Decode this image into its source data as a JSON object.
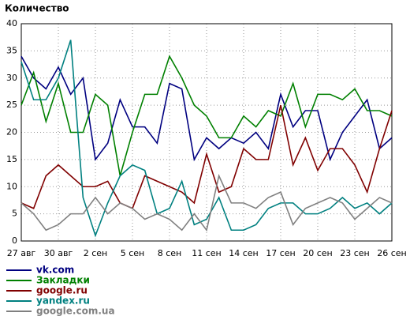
{
  "chart_data": {
    "type": "line",
    "title": "Количество",
    "categories": [
      "27 авг",
      null,
      null,
      "30 авг",
      null,
      null,
      "2 сен",
      null,
      null,
      "5 сен",
      null,
      null,
      "8 сен",
      null,
      null,
      "11 сен",
      null,
      null,
      "14 сен",
      null,
      null,
      "17 сен",
      null,
      null,
      "20 сен",
      null,
      null,
      "23 сен",
      null,
      null,
      "26 сен"
    ],
    "series": [
      {
        "name": "vk.com",
        "color": "#000080",
        "values": [
          34,
          30,
          28,
          32,
          27,
          30,
          15,
          18,
          26,
          21,
          21,
          18,
          29,
          28,
          15,
          19,
          17,
          19,
          18,
          20,
          17,
          27,
          21,
          24,
          24,
          15,
          20,
          23,
          26,
          17,
          19
        ]
      },
      {
        "name": "Закладки",
        "color": "#008000",
        "values": [
          25,
          31,
          22,
          29,
          20,
          20,
          27,
          25,
          12,
          20,
          27,
          27,
          34,
          30,
          25,
          23,
          19,
          19,
          23,
          21,
          24,
          23,
          29,
          21,
          27,
          27,
          26,
          28,
          24,
          24,
          23
        ]
      },
      {
        "name": "google.ru",
        "color": "#800000",
        "values": [
          7,
          6,
          12,
          14,
          12,
          10,
          10,
          11,
          7,
          6,
          12,
          11,
          10,
          9,
          7,
          16,
          9,
          10,
          17,
          15,
          15,
          25,
          14,
          19,
          13,
          17,
          17,
          14,
          9,
          17,
          24
        ]
      },
      {
        "name": "yandex.ru",
        "color": "#008080",
        "values": [
          33,
          26,
          26,
          30,
          37,
          8,
          1,
          7,
          12,
          14,
          13,
          5,
          6,
          11,
          3,
          4,
          8,
          2,
          2,
          3,
          6,
          7,
          7,
          5,
          5,
          6,
          8,
          6,
          7,
          5,
          7
        ]
      },
      {
        "name": "google.com.ua",
        "color": "#808080",
        "values": [
          7,
          5,
          2,
          3,
          5,
          5,
          8,
          5,
          7,
          6,
          4,
          5,
          4,
          2,
          5,
          2,
          12,
          7,
          7,
          6,
          8,
          9,
          3,
          6,
          7,
          8,
          7,
          4,
          6,
          8,
          7
        ]
      }
    ],
    "ylim": [
      0,
      40
    ],
    "yticks": [
      0,
      5,
      10,
      15,
      20,
      25,
      30,
      35,
      40
    ],
    "grid": true
  }
}
